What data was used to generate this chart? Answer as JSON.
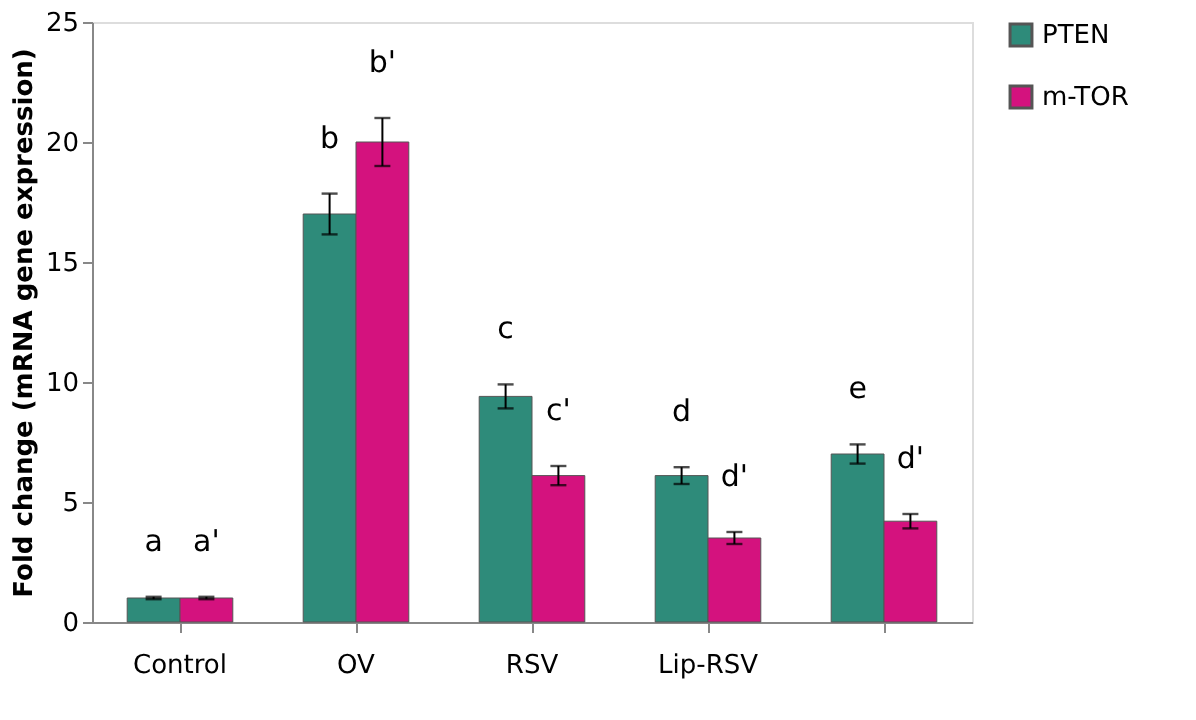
{
  "chart_data": {
    "type": "bar",
    "ylabel": "Fold change (mRNA gene expression)",
    "categories": [
      "Control",
      "OV",
      "RSV",
      "Lip-RSV",
      null
    ],
    "series": [
      {
        "name": "PTEN",
        "color": "#2e8b7a",
        "values": [
          1,
          17,
          9.4,
          6.1,
          7
        ],
        "errors": [
          0.05,
          0.85,
          0.5,
          0.35,
          0.4
        ],
        "value_labels": [
          "a",
          "b",
          "c",
          "d",
          "e"
        ]
      },
      {
        "name": "m-TOR",
        "color": "#d4127e",
        "values": [
          1,
          20,
          6.1,
          3.5,
          4.2
        ],
        "errors": [
          0.05,
          1,
          0.4,
          0.25,
          0.3
        ],
        "value_labels": [
          "a'",
          "b'",
          "c'",
          "d'",
          "d'"
        ]
      }
    ],
    "ylim": [
      0,
      25
    ],
    "yticks": [
      0,
      5,
      10,
      15,
      20,
      25
    ],
    "grid": false,
    "legend": "right"
  }
}
